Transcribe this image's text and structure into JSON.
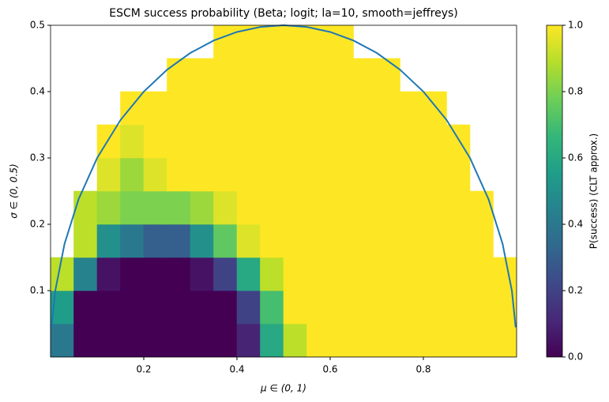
{
  "chart_data": {
    "type": "heatmap",
    "title": "ESCM success probability (Beta; logit; la=10, smooth=jeffreys)",
    "x_label": "μ ∈ (0, 1)",
    "y_label": "σ ∈ (0, 0.5)",
    "colorbar_label": "P(success) (CLT approx.)",
    "colormap": "viridis",
    "x": [
      0,
      0.05,
      0.1,
      0.15,
      0.2,
      0.25,
      0.3,
      0.35,
      0.4,
      0.45,
      0.5,
      0.55,
      0.6,
      0.65,
      0.7,
      0.75,
      0.8,
      0.85,
      0.9,
      0.95,
      1
    ],
    "y": [
      0,
      0.05,
      0.1,
      0.15,
      0.2,
      0.25,
      0.3,
      0.35,
      0.4,
      0.45,
      0.5
    ],
    "z": [
      [
        0.4,
        0,
        0,
        0,
        0,
        0,
        0,
        0,
        0.1,
        0.6,
        0.9,
        1,
        1,
        1,
        1,
        1,
        1,
        1,
        1,
        1
      ],
      [
        0.55,
        0,
        0,
        0,
        0,
        0,
        0,
        0,
        0.2,
        0.7,
        1,
        1,
        1,
        1,
        1,
        1,
        1,
        1,
        1,
        1
      ],
      [
        0.9,
        0.45,
        0.05,
        0,
        0,
        0,
        0.05,
        0.2,
        0.6,
        0.9,
        1,
        1,
        1,
        1,
        1,
        1,
        1,
        1,
        1,
        1
      ],
      [
        null,
        0.9,
        0.5,
        0.4,
        0.3,
        0.3,
        0.5,
        0.75,
        0.95,
        1,
        1,
        1,
        1,
        1,
        1,
        1,
        1,
        1,
        1,
        null
      ],
      [
        null,
        0.9,
        0.85,
        0.8,
        0.8,
        0.8,
        0.85,
        0.95,
        1,
        1,
        1,
        1,
        1,
        1,
        1,
        1,
        1,
        1,
        1,
        null
      ],
      [
        null,
        null,
        0.95,
        0.85,
        0.95,
        1,
        1,
        1,
        1,
        1,
        1,
        1,
        1,
        1,
        1,
        1,
        1,
        1,
        null,
        null
      ],
      [
        null,
        null,
        1,
        0.95,
        1,
        1,
        1,
        1,
        1,
        1,
        1,
        1,
        1,
        1,
        1,
        1,
        1,
        1,
        null,
        null
      ],
      [
        null,
        null,
        null,
        1,
        1,
        1,
        1,
        1,
        1,
        1,
        1,
        1,
        1,
        1,
        1,
        1,
        1,
        null,
        null,
        null
      ],
      [
        null,
        null,
        null,
        null,
        null,
        1,
        1,
        1,
        1,
        1,
        1,
        1,
        1,
        1,
        1,
        null,
        null,
        null,
        null,
        null
      ],
      [
        null,
        null,
        null,
        null,
        null,
        null,
        null,
        1,
        1,
        1,
        1,
        1,
        1,
        null,
        null,
        null,
        null,
        null,
        null,
        null
      ]
    ],
    "curve": {
      "color": "#1f77b4",
      "x": [
        0.002,
        0.01,
        0.03,
        0.06,
        0.1,
        0.15,
        0.2,
        0.25,
        0.3,
        0.35,
        0.4,
        0.45,
        0.5,
        0.55,
        0.6,
        0.65,
        0.7,
        0.75,
        0.8,
        0.85,
        0.9,
        0.94,
        0.97,
        0.99,
        0.998
      ],
      "y": [
        0.0447,
        0.0995,
        0.1706,
        0.2375,
        0.3,
        0.3571,
        0.4,
        0.433,
        0.4583,
        0.477,
        0.4899,
        0.4975,
        0.5,
        0.4975,
        0.4899,
        0.477,
        0.4583,
        0.433,
        0.4,
        0.3571,
        0.3,
        0.2375,
        0.1706,
        0.0995,
        0.0447
      ]
    },
    "xlim": [
      0,
      1
    ],
    "ylim": [
      0,
      0.5
    ],
    "xticks": [
      0.2,
      0.4,
      0.6,
      0.8
    ],
    "yticks": [
      0.1,
      0.2,
      0.3,
      0.4,
      0.5
    ],
    "clim": [
      0,
      1
    ],
    "cticks": [
      {
        "value": 0,
        "label": "0.0"
      },
      0.2,
      0.4,
      0.6,
      0.8,
      {
        "value": 1,
        "label": "1.0"
      }
    ]
  }
}
